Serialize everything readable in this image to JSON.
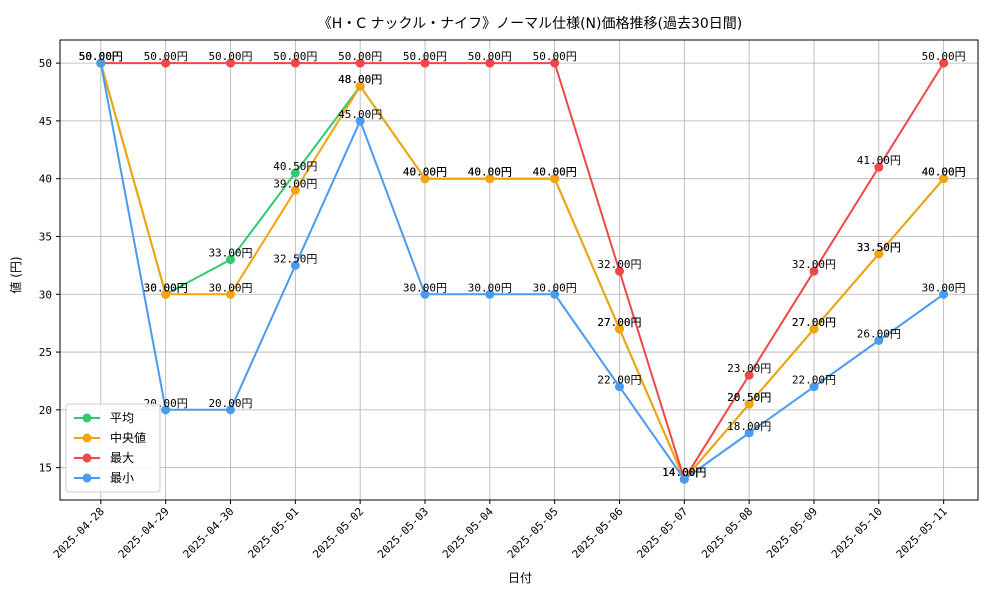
{
  "chart_data": {
    "type": "line",
    "title": "《H・C ナックル・ナイフ》ノーマル仕様(N)価格推移(過去30日間)",
    "xlabel": "日付",
    "ylabel": "値 (円)",
    "ylim": [
      12.2,
      52.0
    ],
    "yticks": [
      15,
      20,
      25,
      30,
      35,
      40,
      45,
      50
    ],
    "grid": true,
    "legend_position": "lower-left",
    "label_suffix": "円",
    "categories": [
      "2025-04-28",
      "2025-04-29",
      "2025-04-30",
      "2025-05-01",
      "2025-05-02",
      "2025-05-03",
      "2025-05-04",
      "2025-05-05",
      "2025-05-06",
      "2025-05-07",
      "2025-05-08",
      "2025-05-09",
      "2025-05-10",
      "2025-05-11"
    ],
    "series": [
      {
        "name": "平均",
        "color": "#2ecc71",
        "values": [
          50,
          30,
          33,
          40.5,
          48,
          40,
          40,
          40,
          27,
          14,
          20.5,
          27,
          33.5,
          40
        ]
      },
      {
        "name": "中央値",
        "color": "#f5a30a",
        "values": [
          50,
          30,
          30,
          39,
          48,
          40,
          40,
          40,
          27,
          14,
          20.5,
          27,
          33.5,
          40
        ]
      },
      {
        "name": "最大",
        "color": "#f04848",
        "values": [
          50,
          50,
          50,
          50,
          50,
          50,
          50,
          50,
          32,
          14,
          23,
          32,
          41,
          50
        ]
      },
      {
        "name": "最小",
        "color": "#4a9aee",
        "values": [
          50,
          20,
          20,
          32.5,
          45,
          30,
          30,
          30,
          22,
          14,
          18,
          22,
          26,
          30
        ]
      }
    ]
  }
}
